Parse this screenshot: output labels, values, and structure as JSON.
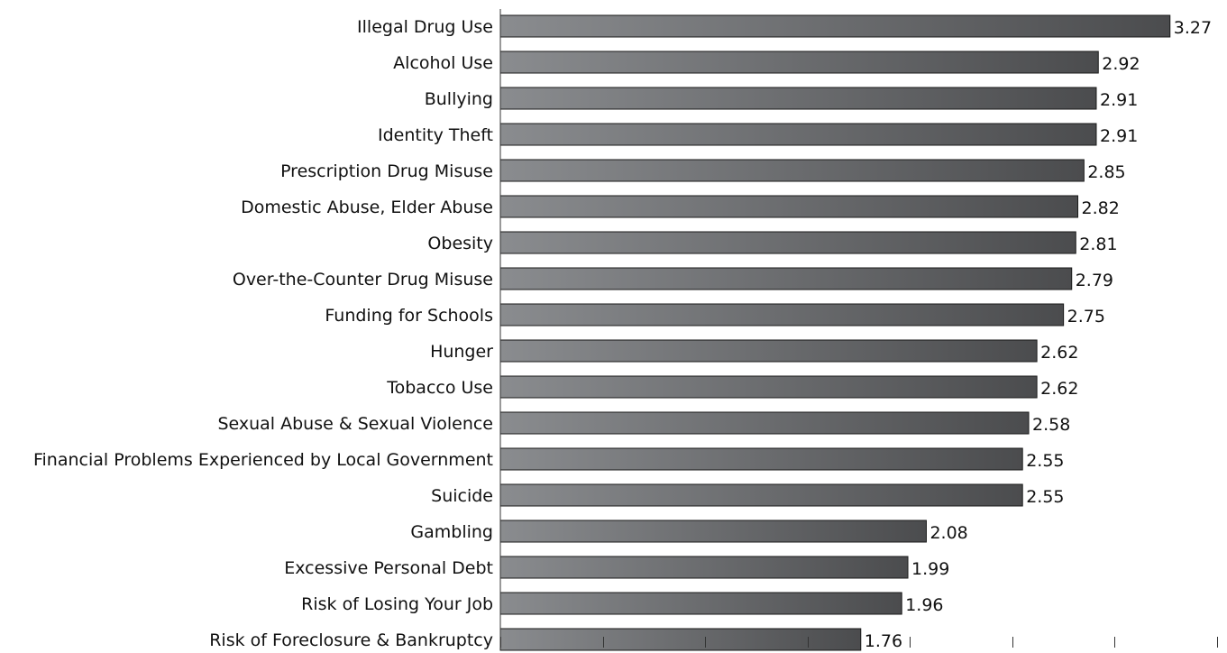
{
  "chart_data": {
    "type": "bar",
    "orientation": "horizontal",
    "categories": [
      "Illegal Drug Use",
      "Alcohol Use",
      "Bullying",
      "Identity Theft",
      "Prescription Drug Misuse",
      "Domestic Abuse, Elder Abuse",
      "Obesity",
      "Over-the-Counter Drug Misuse",
      "Funding for Schools",
      "Hunger",
      "Tobacco Use",
      "Sexual Abuse & Sexual Violence",
      "Financial Problems Experienced by Local Government",
      "Suicide",
      "Gambling",
      "Excessive Personal Debt",
      "Risk of Losing Your Job",
      "Risk of Foreclosure & Bankruptcy"
    ],
    "values": [
      3.27,
      2.92,
      2.91,
      2.91,
      2.85,
      2.82,
      2.81,
      2.79,
      2.75,
      2.62,
      2.62,
      2.58,
      2.55,
      2.55,
      2.08,
      1.99,
      1.96,
      1.76
    ],
    "value_labels": [
      "3.27",
      "2.92",
      "2.91",
      "2.91",
      "2.85",
      "2.82",
      "2.81",
      "2.79",
      "2.75",
      "2.62",
      "2.62",
      "2.58",
      "2.55",
      "2.55",
      "2.08",
      "1.99",
      "1.96",
      "1.76"
    ],
    "xlim": [
      0,
      3.5
    ],
    "tick_values": [
      0,
      0.5,
      1,
      1.5,
      2,
      2.5,
      3,
      3.5
    ],
    "title": "",
    "xlabel": "",
    "ylabel": "",
    "grid": false,
    "legend": "none",
    "colors": {
      "bar_light": "#8a8c8f",
      "bar_dark": "#4b4c4e",
      "bar_edge": "#1a1a1a",
      "axis": "#333333",
      "text": "#111111"
    }
  }
}
